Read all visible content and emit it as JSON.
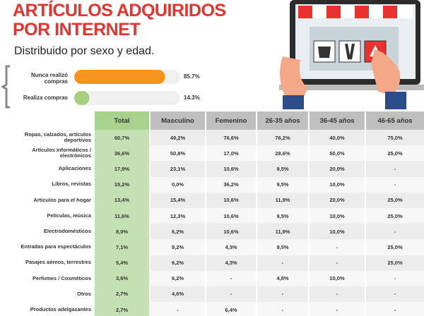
{
  "header": {
    "title_lines": [
      "ARTÍCULOS ADQUIRIDOS",
      "POR INTERNET"
    ],
    "subtitle": "Distribuido por sexo y edad."
  },
  "chart_data": {
    "type": "hbar",
    "categories": [
      "Nunca realizó compras",
      "Realiza compras"
    ],
    "values": [
      85.7,
      14.3
    ],
    "value_labels": [
      "85.7%",
      "14.3%"
    ],
    "colors": [
      "#f7941d",
      "#a6ce7d"
    ],
    "xlim": [
      0,
      100
    ]
  },
  "table": {
    "columns": [
      "Total",
      "Masculino",
      "Femenino",
      "26-35 años",
      "36-45 años",
      "46-65 años"
    ],
    "rows": [
      [
        "Ropas, calzados, artículos deportivos",
        "60,7%",
        "49,2%",
        "76,6%",
        "76,2%",
        "40,0%",
        "75,0%"
      ],
      [
        "Artículos informáticos / electrónicos",
        "36,6%",
        "50,8%",
        "17,0%",
        "28,6%",
        "50,0%",
        "25,0%"
      ],
      [
        "Aplicaciones",
        "17,9%",
        "23,1%",
        "10,6%",
        "9,5%",
        "20,0%",
        "-"
      ],
      [
        "Libros, revistas",
        "15,2%",
        "0,0%",
        "36,2%",
        "9,5%",
        "10,0%",
        "-"
      ],
      [
        "Artículos para el hogar",
        "13,4%",
        "15,4%",
        "10,6%",
        "11,9%",
        "20,0%",
        "25,0%"
      ],
      [
        "Películas, música",
        "11,6%",
        "12,3%",
        "10,6%",
        "9,5%",
        "10,0%",
        "25,0%"
      ],
      [
        "Electrodomésticos",
        "8,0%",
        "6,2%",
        "10,6%",
        "11,9%",
        "10,0%",
        "-"
      ],
      [
        "Entradas para espectáculos",
        "7,1%",
        "9,2%",
        "4,3%",
        "9,5%",
        "-",
        "25,0%"
      ],
      [
        "Pasajes aéreos, terrestres",
        "5,4%",
        "6,2%",
        "4,3%",
        "-",
        "-",
        "25,0%"
      ],
      [
        "Perfumes / Cosméticos",
        "3,6%",
        "6,2%",
        "-",
        "4,8%",
        "10,0%",
        "-"
      ],
      [
        "Otros",
        "2,7%",
        "4,6%",
        "-",
        "-",
        "-",
        "-"
      ],
      [
        "Productos adelgazantes",
        "2,7%",
        "-",
        "6,4%",
        "-",
        "-",
        "-"
      ]
    ]
  }
}
